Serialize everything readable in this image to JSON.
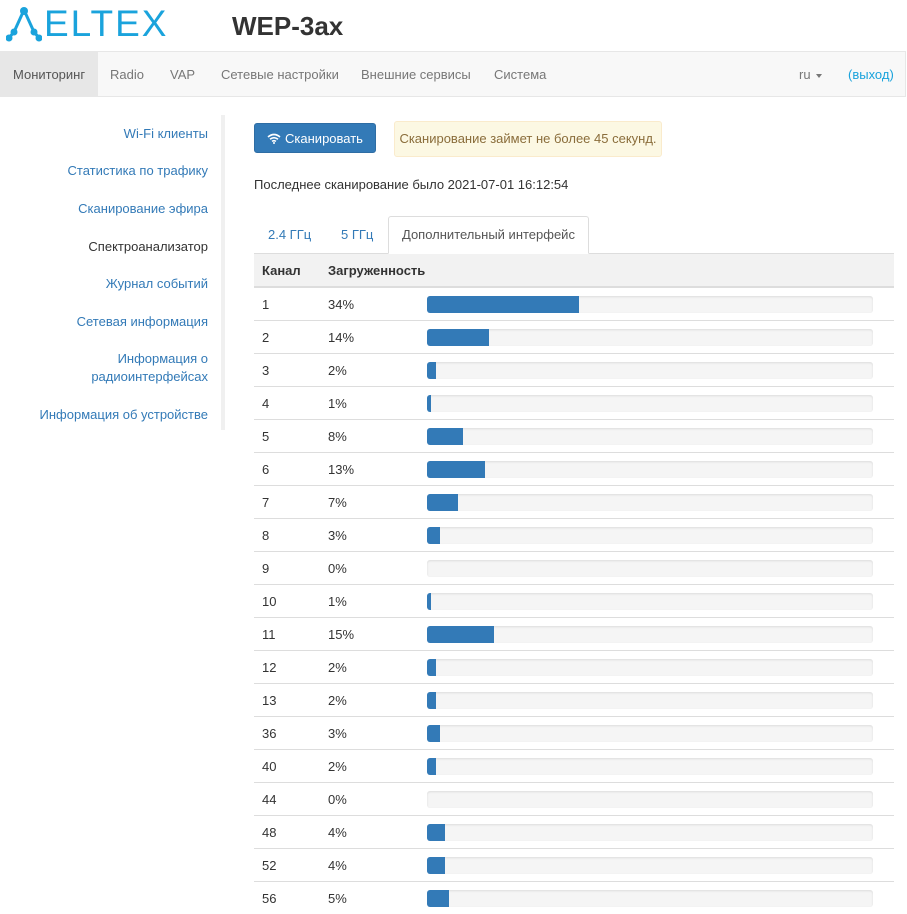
{
  "brand": {
    "logo_text": "ELTEX",
    "device_model": "WEP-3ax"
  },
  "colors": {
    "accent": "#337ab7",
    "brand": "#1aa3dc",
    "warning_bg": "#fcf8e3",
    "warning_text": "#8a6d3b"
  },
  "nav": {
    "items": [
      "Мониторинг",
      "Radio",
      "VAP",
      "Сетевые настройки",
      "Внешние сервисы",
      "Система"
    ],
    "active_index": 0,
    "language": "ru",
    "logout": "(выход)"
  },
  "sidebar": {
    "items": [
      "Wi-Fi клиенты",
      "Статистика по трафику",
      "Сканирование эфира",
      "Спектроанализатор",
      "Журнал событий",
      "Сетевая информация",
      "Информация о радиоинтерфейсах",
      "Информация об устройстве"
    ],
    "current_index": 3
  },
  "main": {
    "scan_button": "Сканировать",
    "scan_icon": "wifi-icon",
    "scan_notice": "Сканирование займет не более 45 секунд.",
    "last_scan": "Последнее сканирование было 2021-07-01 16:12:54",
    "tabs": [
      "2.4 ГГц",
      "5 ГГц",
      "Дополнительный интерфейс"
    ],
    "active_tab": 2,
    "table": {
      "headers": [
        "Канал",
        "Загруженность"
      ],
      "rows": [
        {
          "channel": "1",
          "load": "34%",
          "value": 34
        },
        {
          "channel": "2",
          "load": "14%",
          "value": 14
        },
        {
          "channel": "3",
          "load": "2%",
          "value": 2
        },
        {
          "channel": "4",
          "load": "1%",
          "value": 1
        },
        {
          "channel": "5",
          "load": "8%",
          "value": 8
        },
        {
          "channel": "6",
          "load": "13%",
          "value": 13
        },
        {
          "channel": "7",
          "load": "7%",
          "value": 7
        },
        {
          "channel": "8",
          "load": "3%",
          "value": 3
        },
        {
          "channel": "9",
          "load": "0%",
          "value": 0
        },
        {
          "channel": "10",
          "load": "1%",
          "value": 1
        },
        {
          "channel": "11",
          "load": "15%",
          "value": 15
        },
        {
          "channel": "12",
          "load": "2%",
          "value": 2
        },
        {
          "channel": "13",
          "load": "2%",
          "value": 2
        },
        {
          "channel": "36",
          "load": "3%",
          "value": 3
        },
        {
          "channel": "40",
          "load": "2%",
          "value": 2
        },
        {
          "channel": "44",
          "load": "0%",
          "value": 0
        },
        {
          "channel": "48",
          "load": "4%",
          "value": 4
        },
        {
          "channel": "52",
          "load": "4%",
          "value": 4
        },
        {
          "channel": "56",
          "load": "5%",
          "value": 5
        }
      ]
    }
  }
}
